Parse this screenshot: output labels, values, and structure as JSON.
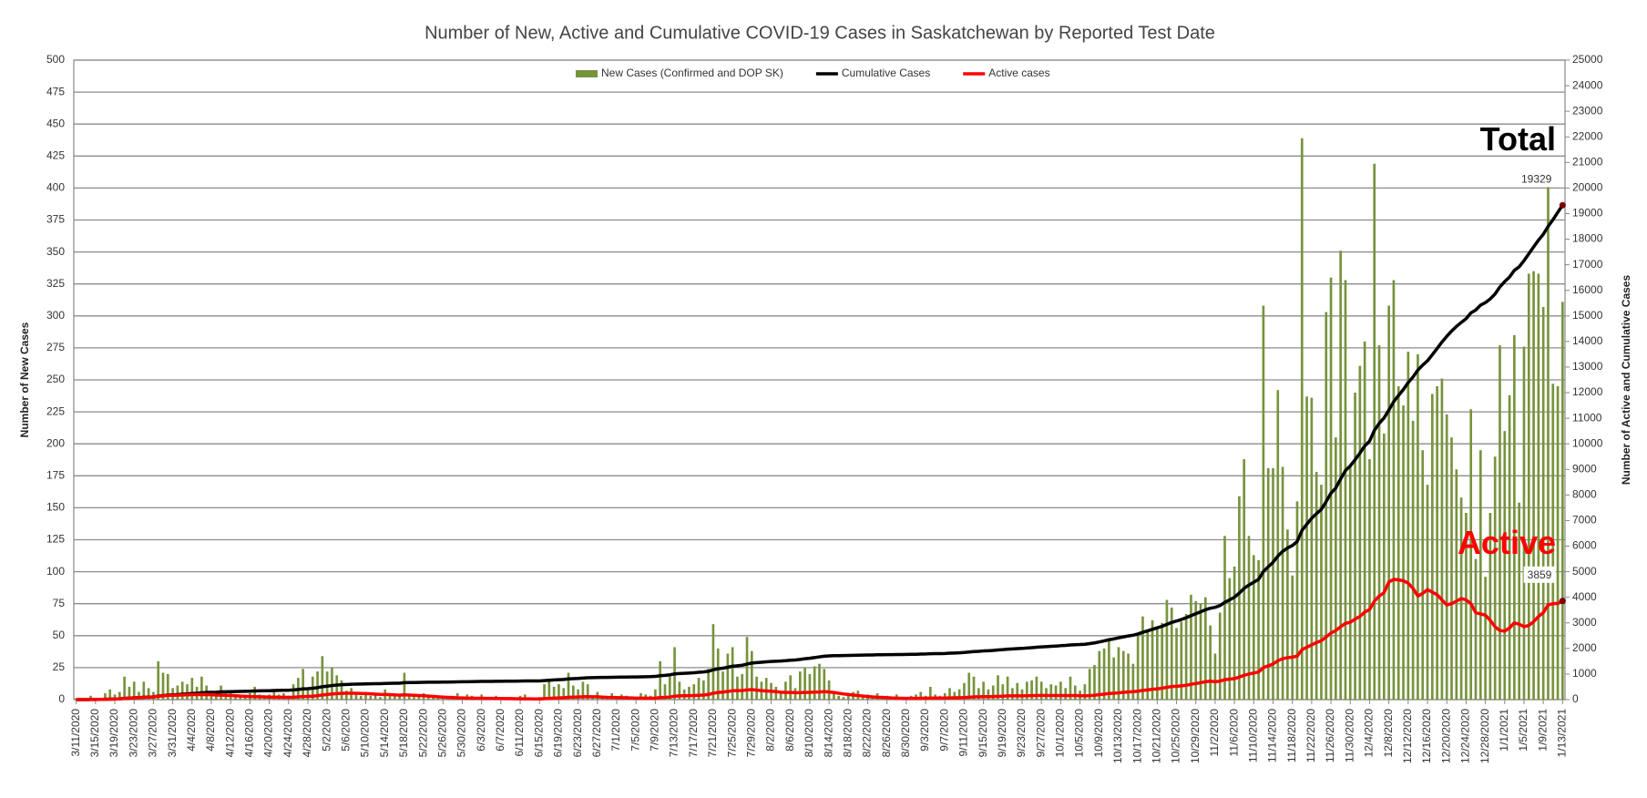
{
  "chart_data": {
    "type": "combo",
    "title": "Number of New, Active and Cumulative COVID-19 Cases in Saskatchewan by Reported Test Date",
    "y_label": "Number of New Cases",
    "y2_label": "Number of Active and Cumulative Cases",
    "categories": [
      "3/11/2020",
      null,
      null,
      null,
      "3/15/2020",
      null,
      null,
      null,
      "3/19/2020",
      null,
      null,
      null,
      "3/23/2020",
      null,
      null,
      null,
      "3/27/2020",
      null,
      null,
      null,
      "3/31/2020",
      null,
      null,
      null,
      "4/4/2020",
      null,
      null,
      null,
      "4/8/2020",
      null,
      null,
      null,
      "4/12/2020",
      null,
      null,
      null,
      "4/16/2020",
      null,
      null,
      null,
      "4/20/2020",
      null,
      null,
      null,
      "4/24/2020",
      null,
      null,
      null,
      "4/28/2020",
      null,
      null,
      null,
      "5/2/2020",
      null,
      null,
      null,
      "5/6/2020",
      null,
      null,
      null,
      "5/10/2020",
      null,
      null,
      null,
      "5/14/2020",
      null,
      null,
      null,
      "5/18/2020",
      null,
      null,
      null,
      "5/22/2020",
      null,
      null,
      null,
      "5/26/2020",
      null,
      null,
      null,
      "5/30/2020",
      null,
      null,
      null,
      "6/3/2020",
      null,
      null,
      null,
      "6/7/2020",
      null,
      null,
      null,
      "6/11/2020",
      null,
      null,
      null,
      "6/15/2020",
      null,
      null,
      null,
      "6/19/2020",
      null,
      null,
      null,
      "6/23/2020",
      null,
      null,
      null,
      "6/27/2020",
      null,
      null,
      null,
      "7/1/2020",
      null,
      null,
      null,
      "7/5/2020",
      null,
      null,
      null,
      "7/9/2020",
      null,
      null,
      null,
      "7/13/2020",
      null,
      null,
      null,
      "7/17/2020",
      null,
      null,
      null,
      "7/21/2020",
      null,
      null,
      null,
      "7/25/2020",
      null,
      null,
      null,
      "7/29/2020",
      null,
      null,
      null,
      "8/2/2020",
      null,
      null,
      null,
      "8/6/2020",
      null,
      null,
      null,
      "8/10/2020",
      null,
      null,
      null,
      "8/14/2020",
      null,
      null,
      null,
      "8/18/2020",
      null,
      null,
      null,
      "8/22/2020",
      null,
      null,
      null,
      "8/26/2020",
      null,
      null,
      null,
      "8/30/2020",
      null,
      null,
      null,
      "9/3/2020",
      null,
      null,
      null,
      "9/7/2020",
      null,
      null,
      null,
      "9/11/2020",
      null,
      null,
      null,
      "9/15/2020",
      null,
      null,
      null,
      "9/19/2020",
      null,
      null,
      null,
      "9/23/2020",
      null,
      null,
      null,
      "9/27/2020",
      null,
      null,
      null,
      "10/1/2020",
      null,
      null,
      null,
      "10/5/2020",
      null,
      null,
      null,
      "10/9/2020",
      null,
      null,
      null,
      "10/13/2020",
      null,
      null,
      null,
      "10/17/2020",
      null,
      null,
      null,
      "10/21/2020",
      null,
      null,
      null,
      "10/25/2020",
      null,
      null,
      null,
      "10/29/2020",
      null,
      null,
      null,
      "11/2/2020",
      null,
      null,
      null,
      "11/6/2020",
      null,
      null,
      null,
      "11/10/2020",
      null,
      null,
      null,
      "11/14/2020",
      null,
      null,
      null,
      "11/18/2020",
      null,
      null,
      null,
      "11/22/2020",
      null,
      null,
      null,
      "11/26/2020",
      null,
      null,
      null,
      "11/30/2020",
      null,
      null,
      null,
      "12/4/2020",
      null,
      null,
      null,
      "12/8/2020",
      null,
      null,
      null,
      "12/12/2020",
      null,
      null,
      null,
      "12/16/2020",
      null,
      null,
      null,
      "12/20/2020",
      null,
      null,
      null,
      "12/24/2020",
      null,
      null,
      null,
      "12/28/2020",
      null,
      null,
      null,
      "1/1/2021",
      null,
      null,
      null,
      "1/5/2021",
      null,
      null,
      null,
      "1/9/2021",
      null,
      null,
      null,
      "1/13/2021"
    ],
    "series": [
      {
        "name": "New Cases (Confirmed and DOP SK)",
        "type": "bar",
        "color": "#77933c",
        "values": [
          1,
          0,
          1,
          3,
          1,
          1,
          5,
          8,
          4,
          6,
          18,
          10,
          14,
          6,
          14,
          9,
          6,
          30,
          21,
          20,
          9,
          11,
          14,
          12,
          17,
          10,
          18,
          11,
          6,
          4,
          11,
          7,
          5,
          4,
          3,
          3,
          5,
          10,
          4,
          3,
          4,
          6,
          4,
          5,
          3,
          12,
          17,
          24,
          9,
          18,
          22,
          34,
          22,
          25,
          19,
          15,
          7,
          9,
          5,
          3,
          6,
          3,
          4,
          2,
          8,
          5,
          3,
          3,
          21,
          4,
          2,
          3,
          5,
          2,
          2,
          1,
          3,
          2,
          3,
          5,
          2,
          4,
          3,
          2,
          4,
          1,
          2,
          3,
          1,
          2,
          2,
          1,
          3,
          4,
          1,
          0,
          2,
          12,
          14,
          10,
          12,
          9,
          21,
          11,
          8,
          14,
          12,
          3,
          6,
          3,
          2,
          5,
          2,
          4,
          3,
          1,
          2,
          5,
          4,
          3,
          8,
          30,
          12,
          18,
          41,
          14,
          8,
          10,
          12,
          17,
          15,
          24,
          59,
          40,
          22,
          36,
          41,
          18,
          20,
          49,
          38,
          18,
          14,
          17,
          13,
          10,
          6,
          14,
          19,
          9,
          22,
          25,
          20,
          26,
          28,
          24,
          15,
          6,
          3,
          2,
          4,
          6,
          7,
          3,
          4,
          2,
          5,
          3,
          3,
          2,
          4,
          1,
          2,
          3,
          4,
          6,
          3,
          10,
          4,
          3,
          5,
          9,
          6,
          8,
          13,
          21,
          18,
          9,
          14,
          8,
          11,
          19,
          12,
          18,
          9,
          13,
          8,
          14,
          15,
          18,
          14,
          9,
          12,
          11,
          14,
          9,
          18,
          11,
          7,
          12,
          24,
          27,
          38,
          40,
          47,
          33,
          41,
          38,
          36,
          28,
          50,
          65,
          55,
          62,
          57,
          60,
          78,
          72,
          56,
          61,
          67,
          82,
          77,
          75,
          80,
          58,
          36,
          68,
          128,
          95,
          104,
          159,
          188,
          128,
          113,
          109,
          308,
          181,
          181,
          242,
          182,
          133,
          97,
          155,
          439,
          237,
          236,
          178,
          168,
          303,
          330,
          205,
          351,
          328,
          183,
          240,
          261,
          280,
          188,
          419,
          277,
          208,
          308,
          328,
          245,
          230,
          272,
          218,
          270,
          195,
          168,
          239,
          245,
          251,
          223,
          205,
          180,
          158,
          146,
          227,
          110,
          195,
          96,
          146,
          190,
          277,
          210,
          238,
          285,
          154,
          276,
          333,
          335,
          333,
          307,
          411,
          247,
          245,
          311
        ]
      },
      {
        "name": "Cumulative Cases",
        "type": "line",
        "axis": "y2",
        "color": "#000000",
        "values": [
          1,
          1,
          2,
          5,
          6,
          7,
          12,
          20,
          24,
          30,
          48,
          58,
          72,
          78,
          92,
          101,
          107,
          137,
          158,
          178,
          187,
          198,
          212,
          224,
          241,
          251,
          269,
          280,
          286,
          290,
          301,
          308,
          313,
          317,
          320,
          323,
          328,
          338,
          342,
          345,
          349,
          355,
          359,
          364,
          367,
          379,
          396,
          420,
          429,
          447,
          469,
          503,
          525,
          550,
          569,
          584,
          591,
          600,
          605,
          608,
          614,
          617,
          621,
          623,
          631,
          636,
          639,
          642,
          663,
          667,
          669,
          672,
          677,
          679,
          681,
          682,
          685,
          687,
          690,
          695,
          697,
          701,
          704,
          706,
          710,
          711,
          713,
          716,
          717,
          719,
          721,
          722,
          725,
          729,
          730,
          730,
          732,
          744,
          758,
          768,
          780,
          789,
          810,
          821,
          829,
          843,
          855,
          858,
          864,
          867,
          869,
          874,
          876,
          880,
          883,
          884,
          886,
          891,
          895,
          898,
          906,
          936,
          948,
          966,
          1007,
          1021,
          1029,
          1039,
          1051,
          1068,
          1083,
          1107,
          1166,
          1206,
          1228,
          1264,
          1305,
          1323,
          1343,
          1392,
          1430,
          1448,
          1462,
          1479,
          1492,
          1502,
          1508,
          1522,
          1541,
          1550,
          1572,
          1597,
          1617,
          1643,
          1671,
          1695,
          1710,
          1716,
          1719,
          1721,
          1725,
          1731,
          1738,
          1741,
          1745,
          1747,
          1752,
          1755,
          1758,
          1760,
          1764,
          1765,
          1767,
          1770,
          1774,
          1780,
          1783,
          1793,
          1797,
          1800,
          1805,
          1814,
          1820,
          1828,
          1841,
          1862,
          1880,
          1889,
          1903,
          1911,
          1922,
          1941,
          1953,
          1971,
          1980,
          1993,
          2001,
          2015,
          2030,
          2048,
          2062,
          2071,
          2083,
          2094,
          2108,
          2117,
          2135,
          2146,
          2153,
          2165,
          2189,
          2216,
          2254,
          2294,
          2341,
          2374,
          2415,
          2453,
          2489,
          2517,
          2567,
          2632,
          2687,
          2749,
          2806,
          2866,
          2944,
          3016,
          3072,
          3133,
          3200,
          3282,
          3359,
          3434,
          3514,
          3572,
          3608,
          3676,
          3804,
          3899,
          4003,
          4162,
          4350,
          4478,
          4591,
          4700,
          5008,
          5189,
          5370,
          5612,
          5794,
          5927,
          6024,
          6179,
          6618,
          6855,
          7091,
          7269,
          7437,
          7740,
          8070,
          8275,
          8626,
          8954,
          9137,
          9377,
          9638,
          9918,
          10106,
          10525,
          10802,
          11010,
          11318,
          11646,
          11891,
          12121,
          12393,
          12611,
          12881,
          13076,
          13244,
          13483,
          13728,
          13979,
          14202,
          14407,
          14587,
          14745,
          14891,
          15118,
          15228,
          15423,
          15519,
          15665,
          15855,
          16132,
          16342,
          16520,
          16780,
          16920,
          17160,
          17430,
          17700,
          17960,
          18190,
          18500,
          18760,
          19050,
          19329
        ]
      },
      {
        "name": "Active cases",
        "type": "line",
        "axis": "y2",
        "color": "#ff0000",
        "values": [
          1,
          1,
          2,
          5,
          6,
          7,
          12,
          20,
          24,
          30,
          48,
          58,
          72,
          78,
          90,
          98,
          102,
          130,
          148,
          165,
          170,
          175,
          182,
          188,
          195,
          196,
          200,
          198,
          190,
          180,
          175,
          168,
          160,
          150,
          140,
          130,
          120,
          115,
          110,
          105,
          100,
          98,
          95,
          92,
          90,
          95,
          105,
          120,
          125,
          135,
          150,
          180,
          200,
          220,
          235,
          245,
          248,
          250,
          248,
          240,
          235,
          225,
          215,
          205,
          200,
          195,
          185,
          175,
          185,
          180,
          170,
          160,
          150,
          140,
          125,
          110,
          100,
          90,
          80,
          70,
          65,
          60,
          58,
          55,
          52,
          50,
          48,
          45,
          43,
          40,
          38,
          35,
          33,
          32,
          30,
          28,
          28,
          38,
          50,
          58,
          68,
          75,
          90,
          98,
          100,
          110,
          115,
          112,
          110,
          100,
          90,
          85,
          80,
          75,
          70,
          65,
          60,
          60,
          58,
          55,
          58,
          80,
          88,
          100,
          135,
          145,
          150,
          155,
          160,
          170,
          180,
          200,
          250,
          280,
          295,
          320,
          345,
          350,
          355,
          380,
          390,
          370,
          350,
          340,
          330,
          310,
          290,
          280,
          280,
          270,
          270,
          280,
          285,
          295,
          300,
          310,
          300,
          280,
          250,
          220,
          200,
          180,
          160,
          140,
          120,
          105,
          95,
          85,
          75,
          65,
          60,
          55,
          50,
          48,
          50,
          55,
          55,
          60,
          62,
          60,
          62,
          68,
          70,
          75,
          82,
          95,
          108,
          110,
          115,
          115,
          120,
          130,
          135,
          145,
          145,
          150,
          148,
          150,
          155,
          160,
          165,
          160,
          160,
          158,
          160,
          155,
          160,
          158,
          150,
          145,
          155,
          170,
          195,
          215,
          240,
          250,
          265,
          285,
          300,
          310,
          330,
          360,
          380,
          405,
          420,
          445,
          480,
          510,
          520,
          540,
          560,
          600,
          630,
          660,
          700,
          720,
          700,
          720,
          780,
          800,
          820,
          880,
          950,
          1000,
          1040,
          1080,
          1250,
          1320,
          1390,
          1520,
          1600,
          1640,
          1660,
          1700,
          1950,
          2050,
          2140,
          2230,
          2300,
          2450,
          2600,
          2700,
          2850,
          2980,
          3020,
          3150,
          3250,
          3420,
          3520,
          3850,
          4050,
          4180,
          4600,
          4700,
          4680,
          4650,
          4550,
          4350,
          4050,
          4150,
          4300,
          4200,
          4100,
          3900,
          3700,
          3750,
          3850,
          3950,
          3900,
          3750,
          3400,
          3350,
          3300,
          3100,
          2850,
          2700,
          2680,
          2800,
          3000,
          2950,
          2850,
          2900,
          3050,
          3250,
          3400,
          3700,
          3750,
          3760,
          3859
        ]
      }
    ],
    "ylim": [
      0,
      500
    ],
    "yticks": [
      0,
      25,
      50,
      75,
      100,
      125,
      150,
      175,
      200,
      225,
      250,
      275,
      300,
      325,
      350,
      375,
      400,
      425,
      450,
      475,
      500
    ],
    "y2lim": [
      0,
      25000
    ],
    "y2ticks": [
      0,
      1000,
      2000,
      3000,
      4000,
      5000,
      6000,
      7000,
      8000,
      9000,
      10000,
      11000,
      12000,
      13000,
      14000,
      15000,
      16000,
      17000,
      18000,
      19000,
      20000,
      21000,
      22000,
      23000,
      24000,
      25000
    ],
    "grid": true,
    "legend": "top",
    "annotations": [
      {
        "text": "Total",
        "series": 1
      },
      {
        "text": "Active",
        "series": 2
      }
    ]
  }
}
